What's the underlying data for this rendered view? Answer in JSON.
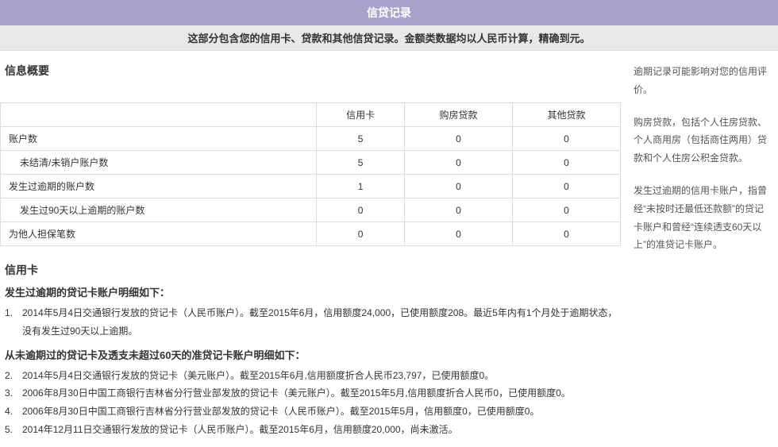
{
  "header": {
    "title": "信贷记录",
    "subtitle": "这部分包含您的信用卡、贷款和其他信贷记录。金额类数据均以人民币计算，精确到元。"
  },
  "overview": {
    "section_title": "信息概要",
    "table": {
      "columns": [
        "",
        "信用卡",
        "购房贷款",
        "其他贷款"
      ],
      "rows": [
        {
          "label": "账户数",
          "indent": false,
          "values": [
            "5",
            "0",
            "0"
          ]
        },
        {
          "label": "未结清/未销户账户数",
          "indent": true,
          "values": [
            "5",
            "0",
            "0"
          ]
        },
        {
          "label": "发生过逾期的账户数",
          "indent": false,
          "values": [
            "1",
            "0",
            "0"
          ]
        },
        {
          "label": "发生过90天以上逾期的账户数",
          "indent": true,
          "values": [
            "0",
            "0",
            "0"
          ]
        },
        {
          "label": "为他人担保笔数",
          "indent": false,
          "values": [
            "0",
            "0",
            "0"
          ]
        }
      ]
    }
  },
  "credit_card": {
    "section_title": "信用卡",
    "overdue_heading": "发生过逾期的贷记卡账户明细如下：",
    "overdue_items": [
      {
        "num": "1.",
        "text": "2014年5月4日交通银行发放的贷记卡（人民币账户）。截至2015年6月，信用额度24,000，已使用额度208。最近5年内有1个月处于逾期状态，没有发生过90天以上逾期。"
      }
    ],
    "normal_heading": "从未逾期过的贷记卡及透支未超过60天的准贷记卡账户明细如下：",
    "normal_items": [
      {
        "num": "2.",
        "text": "2014年5月4日交通银行发放的贷记卡（美元账户）。截至2015年6月,信用额度折合人民币23,797，已使用额度0。"
      },
      {
        "num": "3.",
        "text": "2006年8月30日中国工商银行吉林省分行营业部发放的贷记卡（美元账户）。截至2015年5月,信用额度折合人民币0，已使用额度0。"
      },
      {
        "num": "4.",
        "text": "2006年8月30日中国工商银行吉林省分行营业部发放的贷记卡（人民币账户）。截至2015年5月，信用额度0，已使用额度0。"
      },
      {
        "num": "5.",
        "text": "2014年12月11日交通银行发放的贷记卡（人民币账户）。截至2015年6月，信用额度20,000，尚未激活。"
      }
    ]
  },
  "side_notes": [
    "逾期记录可能影响对您的信用评价。",
    "购房贷款，包括个人住房贷款、个人商用房（包括商住两用）贷款和个人住房公积金贷款。",
    "发生过逾期的信用卡账户，指曾经“未按时还最低还款额”的贷记卡账户和曾经“连续透支60天以上”的准贷记卡账户。"
  ]
}
